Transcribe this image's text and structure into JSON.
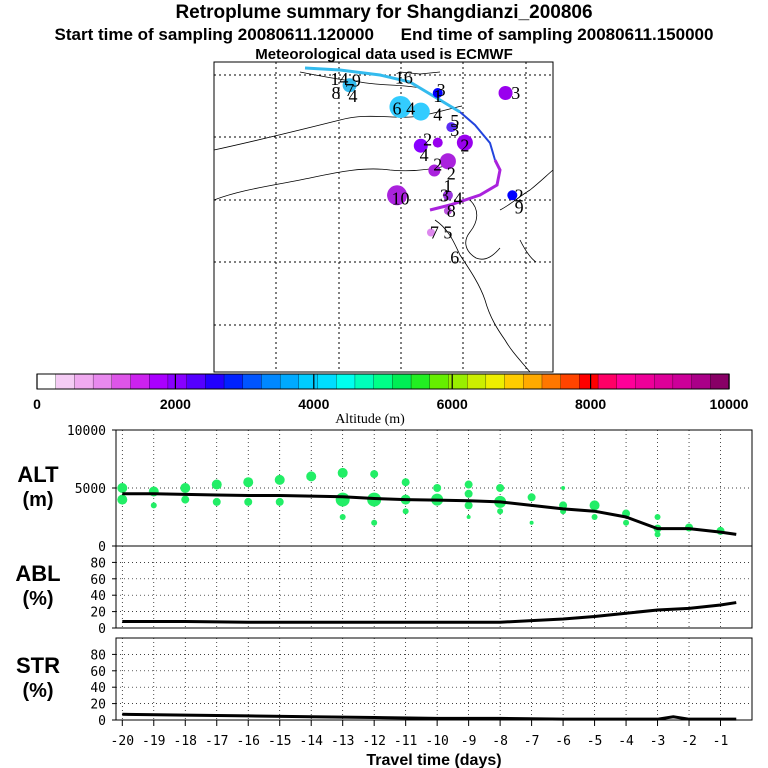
{
  "header": {
    "title": "Retroplume summary for Shangdianzi_200806",
    "start_time": "Start time of sampling 20080611.120000",
    "end_time": "End time of sampling 20080611.150000",
    "met": "Meteorological data used is ECMWF"
  },
  "map": {
    "labels": [
      {
        "text": "16",
        "lon": 0.56,
        "lat": 0.05
      },
      {
        "text": "14",
        "lon": 0.37,
        "lat": 0.055
      },
      {
        "text": "9",
        "lon": 0.42,
        "lat": 0.06
      },
      {
        "text": "8",
        "lon": 0.36,
        "lat": 0.1
      },
      {
        "text": "7",
        "lon": 0.4,
        "lat": 0.09
      },
      {
        "text": "4",
        "lon": 0.41,
        "lat": 0.11
      },
      {
        "text": "6",
        "lon": 0.54,
        "lat": 0.15
      },
      {
        "text": "4",
        "lon": 0.58,
        "lat": 0.15
      },
      {
        "text": "1",
        "lon": 0.66,
        "lat": 0.11
      },
      {
        "text": "3",
        "lon": 0.67,
        "lat": 0.09
      },
      {
        "text": "4",
        "lon": 0.66,
        "lat": 0.17
      },
      {
        "text": "5",
        "lon": 0.71,
        "lat": 0.19
      },
      {
        "text": "3",
        "lon": 0.89,
        "lat": 0.1
      },
      {
        "text": "3",
        "lon": 0.71,
        "lat": 0.22
      },
      {
        "text": "2",
        "lon": 0.63,
        "lat": 0.25
      },
      {
        "text": "2",
        "lon": 0.74,
        "lat": 0.27
      },
      {
        "text": "4",
        "lon": 0.62,
        "lat": 0.3
      },
      {
        "text": "2",
        "lon": 0.66,
        "lat": 0.33
      },
      {
        "text": "2",
        "lon": 0.7,
        "lat": 0.36
      },
      {
        "text": "1",
        "lon": 0.69,
        "lat": 0.4
      },
      {
        "text": "3",
        "lon": 0.68,
        "lat": 0.43
      },
      {
        "text": "4",
        "lon": 0.72,
        "lat": 0.44
      },
      {
        "text": "10",
        "lon": 0.55,
        "lat": 0.44
      },
      {
        "text": "2",
        "lon": 0.9,
        "lat": 0.43
      },
      {
        "text": "9",
        "lon": 0.9,
        "lat": 0.47
      },
      {
        "text": "8",
        "lon": 0.7,
        "lat": 0.48
      },
      {
        "text": "7",
        "lon": 0.65,
        "lat": 0.55
      },
      {
        "text": "5",
        "lon": 0.69,
        "lat": 0.55
      },
      {
        "text": "6",
        "lon": 0.71,
        "lat": 0.63
      }
    ],
    "dots": [
      {
        "lon": 0.4,
        "lat": 0.075,
        "r": 7,
        "color": "#33bbee"
      },
      {
        "lon": 0.55,
        "lat": 0.145,
        "r": 11,
        "color": "#33ccff"
      },
      {
        "lon": 0.61,
        "lat": 0.16,
        "r": 9,
        "color": "#33ccff"
      },
      {
        "lon": 0.66,
        "lat": 0.1,
        "r": 5,
        "color": "#0000ff"
      },
      {
        "lon": 0.86,
        "lat": 0.1,
        "r": 7,
        "color": "#9900ee"
      },
      {
        "lon": 0.7,
        "lat": 0.21,
        "r": 5,
        "color": "#5a2cf5"
      },
      {
        "lon": 0.61,
        "lat": 0.27,
        "r": 7,
        "color": "#8800ff"
      },
      {
        "lon": 0.66,
        "lat": 0.26,
        "r": 5,
        "color": "#9900ee"
      },
      {
        "lon": 0.74,
        "lat": 0.26,
        "r": 8,
        "color": "#9900ee"
      },
      {
        "lon": 0.69,
        "lat": 0.32,
        "r": 8,
        "color": "#aa22dd"
      },
      {
        "lon": 0.65,
        "lat": 0.35,
        "r": 6,
        "color": "#aa22dd"
      },
      {
        "lon": 0.69,
        "lat": 0.43,
        "r": 5,
        "color": "#9933dd"
      },
      {
        "lon": 0.54,
        "lat": 0.43,
        "r": 10,
        "color": "#aa22dd"
      },
      {
        "lon": 0.88,
        "lat": 0.43,
        "r": 5,
        "color": "#0000ff"
      },
      {
        "lon": 0.69,
        "lat": 0.48,
        "r": 4,
        "color": "#bb55dd"
      },
      {
        "lon": 0.64,
        "lat": 0.55,
        "r": 4,
        "color": "#dd88ee"
      }
    ]
  },
  "colorbar": {
    "ticks": [
      "0",
      "2000",
      "4000",
      "6000",
      "8000",
      "10000"
    ],
    "label": "Altitude (m)",
    "colors": [
      "#ffffff",
      "#f5ccf5",
      "#f0aaf0",
      "#e889ee",
      "#dd55e8",
      "#cc22ee",
      "#aa00ff",
      "#8800ff",
      "#5500ff",
      "#2200ff",
      "#0022ff",
      "#0055ff",
      "#0088ff",
      "#00aaff",
      "#00ccff",
      "#00ddff",
      "#00ffee",
      "#00ffbb",
      "#00ff88",
      "#00ee55",
      "#22ee22",
      "#66ee00",
      "#99ee00",
      "#ccee00",
      "#eeee00",
      "#ffcc00",
      "#ffaa00",
      "#ff7700",
      "#ff4400",
      "#ff0000",
      "#ff0066",
      "#ff0099",
      "#ee0099",
      "#dd0099",
      "#cc0099",
      "#aa0088",
      "#880066"
    ]
  },
  "chart_data": [
    {
      "type": "line",
      "name": "altitude",
      "ylabel": "ALT (m)",
      "ylabel_line1": "ALT",
      "ylabel_line2": "(m)",
      "ylim": [
        0,
        10000
      ],
      "yticks": [
        "10000",
        "5000",
        "0"
      ],
      "x": [
        -20,
        -19,
        -18,
        -17,
        -16,
        -15,
        -14,
        -13,
        -12,
        -11,
        -10,
        -9,
        -8,
        -7,
        -6,
        -5,
        -4,
        -3,
        -2,
        -1,
        -0.5
      ],
      "values": [
        4500,
        4500,
        4450,
        4400,
        4350,
        4350,
        4300,
        4250,
        4100,
        4000,
        3950,
        3900,
        3800,
        3500,
        3200,
        3000,
        2500,
        1500,
        1500,
        1200,
        1000
      ],
      "scatter": [
        [
          -20,
          5000,
          5
        ],
        [
          -20,
          4000,
          5
        ],
        [
          -19,
          4700,
          5
        ],
        [
          -19,
          3500,
          3
        ],
        [
          -18,
          5000,
          5
        ],
        [
          -18,
          4000,
          4
        ],
        [
          -17,
          5300,
          5
        ],
        [
          -17,
          3800,
          4
        ],
        [
          -16,
          5500,
          5
        ],
        [
          -16,
          3800,
          4
        ],
        [
          -15,
          5700,
          5
        ],
        [
          -15,
          3800,
          4
        ],
        [
          -14,
          6000,
          5
        ],
        [
          -13,
          6300,
          5
        ],
        [
          -13,
          4000,
          7
        ],
        [
          -13,
          2500,
          3
        ],
        [
          -12,
          6200,
          4
        ],
        [
          -12,
          4000,
          7
        ],
        [
          -12,
          2000,
          3
        ],
        [
          -11,
          5500,
          4
        ],
        [
          -11,
          4000,
          5
        ],
        [
          -11,
          3000,
          3
        ],
        [
          -10,
          5000,
          4
        ],
        [
          -10,
          4000,
          6
        ],
        [
          -9,
          5300,
          4
        ],
        [
          -9,
          4500,
          4
        ],
        [
          -9,
          3500,
          4
        ],
        [
          -9,
          2500,
          2
        ],
        [
          -8,
          5000,
          4
        ],
        [
          -8,
          3800,
          6
        ],
        [
          -8,
          3000,
          3
        ],
        [
          -7,
          4200,
          4
        ],
        [
          -7,
          2000,
          2
        ],
        [
          -6,
          5000,
          2
        ],
        [
          -6,
          3500,
          4
        ],
        [
          -6,
          3000,
          3
        ],
        [
          -5,
          3500,
          5
        ],
        [
          -5,
          2500,
          3
        ],
        [
          -4,
          2800,
          4
        ],
        [
          -4,
          2000,
          3
        ],
        [
          -3,
          2500,
          3
        ],
        [
          -3,
          1500,
          4
        ],
        [
          -3,
          1000,
          3
        ],
        [
          -2,
          1600,
          4
        ],
        [
          -1,
          1300,
          4
        ]
      ]
    },
    {
      "type": "line",
      "name": "abl",
      "ylabel": "ABL (%)",
      "ylabel_line1": "ABL",
      "ylabel_line2": "(%)",
      "ylim": [
        0,
        100
      ],
      "yticks": [
        "80",
        "60",
        "40",
        "20",
        "0"
      ],
      "x": [
        -20,
        -18,
        -16,
        -14,
        -12,
        -10,
        -8,
        -7,
        -6,
        -5,
        -4,
        -3,
        -2,
        -1,
        -0.5
      ],
      "values": [
        8,
        8,
        7,
        7,
        7,
        7,
        7,
        9,
        11,
        14,
        18,
        22,
        24,
        28,
        31
      ]
    },
    {
      "type": "line",
      "name": "str",
      "ylabel": "STR (%)",
      "ylabel_line1": "STR",
      "ylabel_line2": "(%)",
      "ylim": [
        0,
        100
      ],
      "yticks": [
        "80",
        "60",
        "40",
        "20",
        "0"
      ],
      "x": [
        -20,
        -18,
        -16,
        -14,
        -12,
        -10,
        -8,
        -6,
        -4,
        -3,
        -2.5,
        -2,
        -1,
        -0.5
      ],
      "values": [
        7,
        6,
        5,
        4,
        3,
        2,
        2,
        1,
        1,
        1,
        4,
        1,
        1,
        1
      ]
    }
  ],
  "x_axis": {
    "ticks": [
      "-20",
      "-19",
      "-18",
      "-17",
      "-16",
      "-15",
      "-14",
      "-13",
      "-12",
      "-11",
      "-10",
      "-9",
      "-8",
      "-7",
      "-6",
      "-5",
      "-4",
      "-3",
      "-2",
      "-1"
    ],
    "label": "Travel time (days)"
  }
}
